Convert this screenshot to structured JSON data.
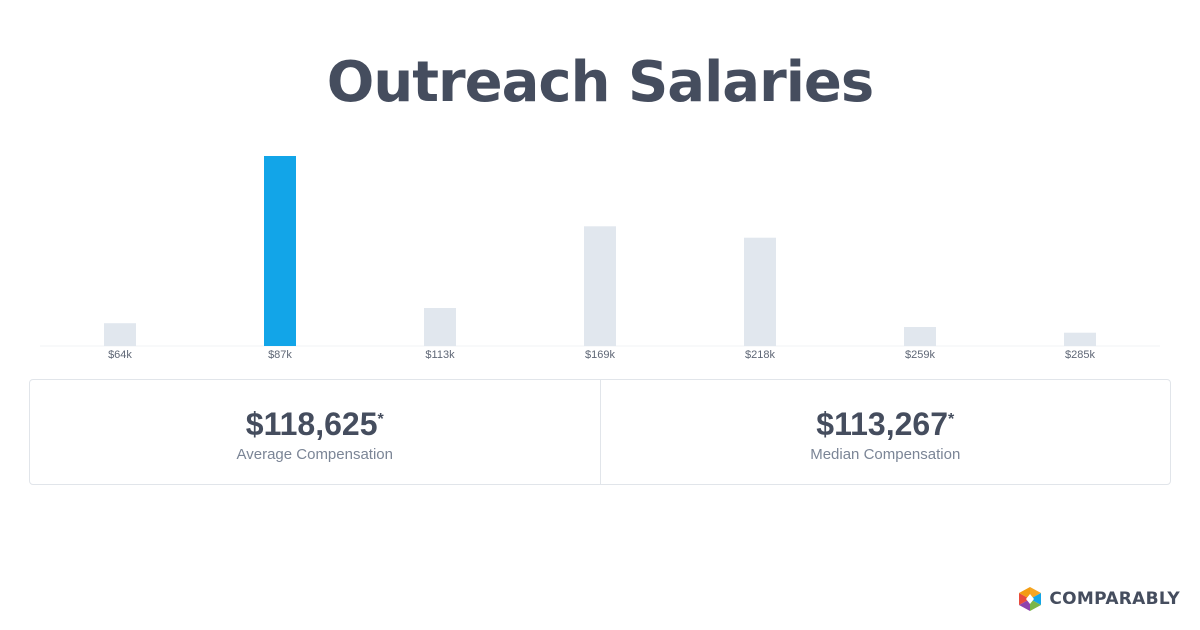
{
  "page": {
    "title": "Outreach Salaries"
  },
  "chart_data": {
    "type": "bar",
    "categories": [
      "$64k",
      "$87k",
      "$113k",
      "$169k",
      "$218k",
      "$259k",
      "$285k"
    ],
    "values": [
      12,
      100,
      20,
      63,
      57,
      10,
      7
    ],
    "highlight_index": 1,
    "highlight_color": "#12a5e8",
    "bar_color": "#e1e7ee",
    "title": "",
    "xlabel": "",
    "ylabel": "",
    "ylim": [
      0,
      100
    ],
    "grid": false,
    "legend": "none"
  },
  "stats": {
    "average": {
      "value": "$118,625",
      "marker": "*",
      "label": "Average Compensation"
    },
    "median": {
      "value": "$113,267",
      "marker": "*",
      "label": "Median Compensation"
    }
  },
  "brand": {
    "name": "COMPARABLY",
    "icon": "comparably-logo-icon",
    "colors": [
      "#f5a623",
      "#12a5e8",
      "#7ab648",
      "#e94b3c",
      "#8e44ad"
    ]
  }
}
